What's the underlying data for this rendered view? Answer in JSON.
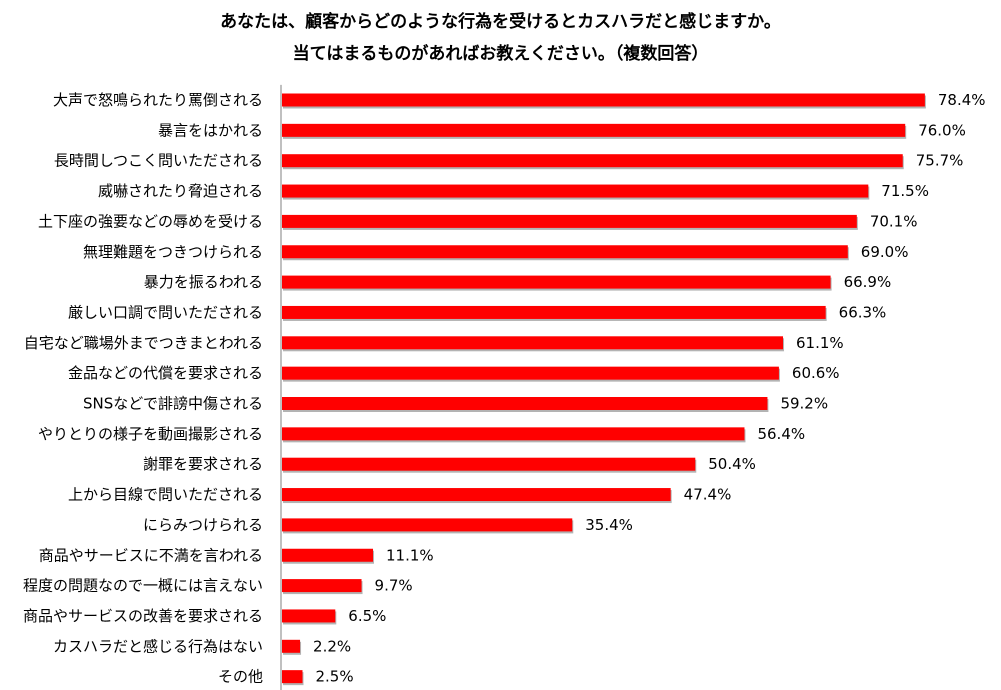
{
  "title_lines": [
    "あなたは、顧客からどのような行為を受けるとカスハラだと感じますか。",
    "当てはまるものがあればお教えください。（複数回答）"
  ],
  "colors": {
    "bar": "#ff0000",
    "bar_shadow": "#b3b3b3",
    "axis": "#808080"
  },
  "chart_data": {
    "type": "bar",
    "orientation": "horizontal",
    "title": "あなたは、顧客からどのような行為を受けるとカスハラだと感じますか。当てはまるものがあればお教えください。（複数回答）",
    "value_unit": "%",
    "xlim": [
      0,
      100
    ],
    "grid": false,
    "legend": "none",
    "categories": [
      "大声で怒鳴られたり罵倒される",
      "暴言をはかれる",
      "長時間しつこく問いただされる",
      "威嚇されたり脅迫される",
      "土下座の強要などの辱めを受ける",
      "無理難題をつきつけられる",
      "暴力を振るわれる",
      "厳しい口調で問いただされる",
      "自宅など職場外までつきまとわれる",
      "金品などの代償を要求される",
      "SNSなどで誹謗中傷される",
      "やりとりの様子を動画撮影される",
      "謝罪を要求される",
      "上から目線で問いただされる",
      "にらみつけられる",
      "商品やサービスに不満を言われる",
      "程度の問題なので一概には言えない",
      "商品やサービスの改善を要求される",
      "カスハラだと感じる行為はない",
      "その他"
    ],
    "values": [
      78.4,
      76.0,
      75.7,
      71.5,
      70.1,
      69.0,
      66.9,
      66.3,
      61.1,
      60.6,
      59.2,
      56.4,
      50.4,
      47.4,
      35.4,
      11.1,
      9.7,
      6.5,
      2.2,
      2.5
    ],
    "value_labels": [
      "78.4%",
      "76.0%",
      "75.7%",
      "71.5%",
      "70.1%",
      "69.0%",
      "66.9%",
      "66.3%",
      "61.1%",
      "60.6%",
      "59.2%",
      "56.4%",
      "50.4%",
      "47.4%",
      "35.4%",
      "11.1%",
      "9.7%",
      "6.5%",
      "2.2%",
      "2.5%"
    ]
  }
}
